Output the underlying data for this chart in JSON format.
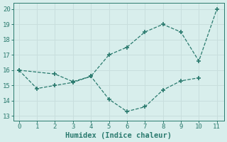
{
  "xlabel": "Humidex (Indice chaleur)",
  "line1_x": [
    0,
    2,
    3,
    4,
    5,
    6,
    7,
    8,
    9,
    10,
    11
  ],
  "line1_y": [
    16.0,
    15.75,
    15.25,
    15.6,
    17.0,
    17.5,
    18.5,
    19.0,
    18.5,
    16.6,
    20.0
  ],
  "line2_x": [
    0,
    1,
    2,
    3,
    4,
    5,
    6,
    7,
    8,
    9,
    10
  ],
  "line2_y": [
    16.0,
    14.8,
    15.0,
    15.2,
    15.6,
    14.1,
    13.3,
    13.6,
    14.7,
    15.3,
    15.5
  ],
  "line_color": "#2a7a6e",
  "marker": "+",
  "marker_size": 4,
  "marker_lw": 1.2,
  "line_width": 0.9,
  "bg_color": "#d8eeec",
  "grid_color": "#c8dedd",
  "xlim": [
    -0.3,
    11.4
  ],
  "ylim": [
    12.7,
    20.4
  ],
  "yticks": [
    13,
    14,
    15,
    16,
    17,
    18,
    19,
    20
  ],
  "xticks": [
    0,
    1,
    2,
    3,
    4,
    5,
    6,
    7,
    8,
    9,
    10,
    11
  ],
  "tick_fontsize": 6.5,
  "label_fontsize": 7.5
}
